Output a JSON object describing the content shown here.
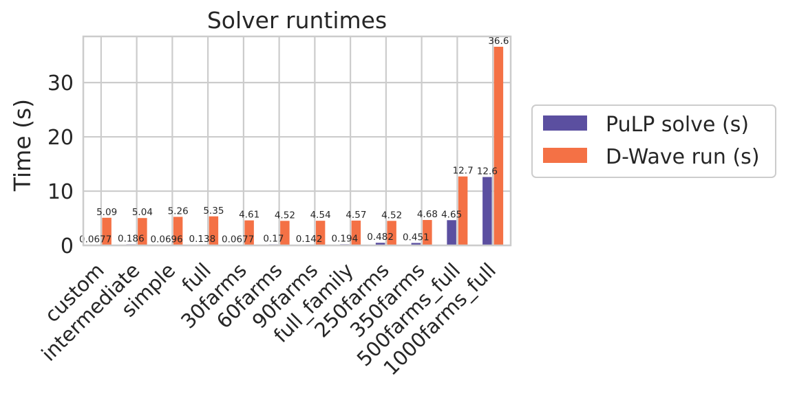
{
  "chart_data": {
    "type": "bar",
    "title": "Solver runtimes",
    "xlabel": "",
    "ylabel": "Time (s)",
    "ylim": [
      0,
      38.5
    ],
    "yticks": [
      0,
      10,
      20,
      30
    ],
    "grid": true,
    "legend_position": "right, outside plot",
    "categories": [
      "custom",
      "intermediate",
      "simple",
      "full",
      "30farms",
      "60farms",
      "90farms",
      "full_family",
      "250farms",
      "350farms",
      "500farms_full",
      "1000farms_full"
    ],
    "series": [
      {
        "name": "PuLP solve (s)",
        "color": "#5b4fa0",
        "values": [
          0.0677,
          0.186,
          0.0696,
          0.138,
          0.0677,
          0.17,
          0.142,
          0.194,
          0.482,
          0.451,
          4.65,
          12.6
        ],
        "labels": [
          "0.0677",
          "0.186",
          "0.0696",
          "0.138",
          "0.0677",
          "0.17",
          "0.142",
          "0.194",
          "0.482",
          "0.451",
          "4.65",
          "12.6"
        ]
      },
      {
        "name": "D-Wave run (s)",
        "color": "#f47145",
        "values": [
          5.09,
          5.04,
          5.26,
          5.35,
          4.61,
          4.52,
          4.54,
          4.57,
          4.52,
          4.68,
          12.7,
          36.6
        ],
        "labels": [
          "5.09",
          "5.04",
          "5.26",
          "5.35",
          "4.61",
          "4.52",
          "4.54",
          "4.57",
          "4.52",
          "4.68",
          "12.7",
          "36.6"
        ]
      }
    ]
  }
}
